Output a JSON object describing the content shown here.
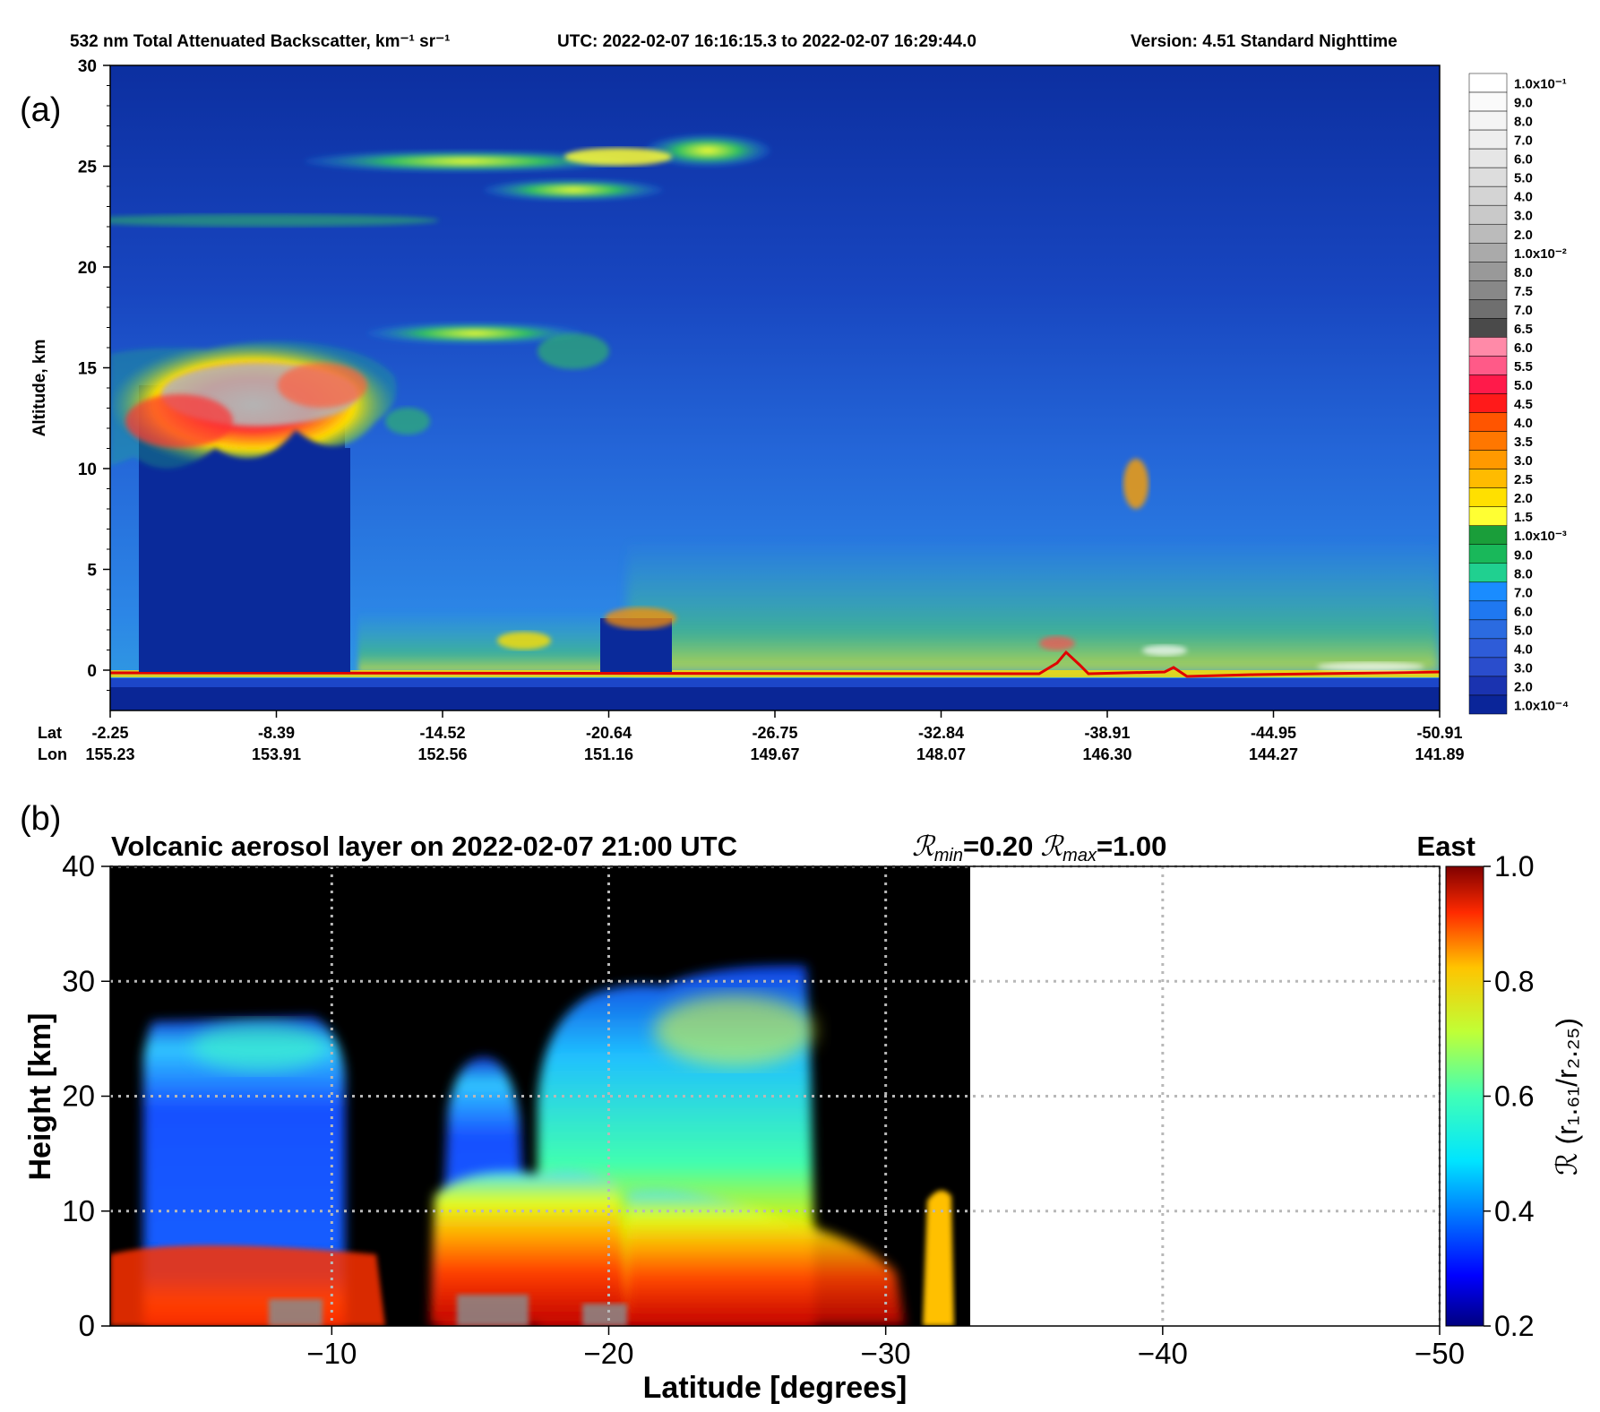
{
  "panel_a": {
    "panel_label": "(a)",
    "title": "532 nm Total Attenuated Backscatter, km⁻¹ sr⁻¹",
    "utc": "UTC:  2022-02-07 16:16:15.3  to  2022-02-07 16:29:44.0",
    "version": "Version: 4.51  Standard  Nighttime",
    "ylabel": "Altitude, km",
    "lat_label": "Lat",
    "lon_label": "Lon",
    "colorbar_labels": [
      "1.0x10⁻¹",
      "9.0",
      "8.0",
      "7.0",
      "6.0",
      "5.0",
      "4.0",
      "3.0",
      "2.0",
      "1.0x10⁻²",
      "8.0",
      "7.5",
      "7.0",
      "6.5",
      "6.0",
      "5.5",
      "5.0",
      "4.5",
      "4.0",
      "3.5",
      "3.0",
      "2.5",
      "2.0",
      "1.5",
      "1.0x10⁻³",
      "9.0",
      "8.0",
      "7.0",
      "6.0",
      "5.0",
      "4.0",
      "3.0",
      "2.0",
      "1.0x10⁻⁴"
    ],
    "colorbar_colors": [
      "#ffffff",
      "#fafafa",
      "#f4f4f4",
      "#eeeeee",
      "#e6e6e6",
      "#dddddd",
      "#d4d4d4",
      "#c9c9c9",
      "#bbbbbb",
      "#aaaaaa",
      "#999999",
      "#888888",
      "#6f6f6f",
      "#4a4a4a",
      "#ff8aa8",
      "#ff5a88",
      "#ff1a4a",
      "#ff1a1a",
      "#ff5500",
      "#ff7700",
      "#ff9900",
      "#ffbb00",
      "#ffe000",
      "#ffff33",
      "#1a9e3a",
      "#19b85a",
      "#20d090",
      "#1a8cff",
      "#1f78f0",
      "#2b6be0",
      "#2e5cd8",
      "#2a4dcc",
      "#1a33b0",
      "#0a2599"
    ],
    "chart_data": {
      "type": "heatmap",
      "y_ticks": [
        0,
        5,
        10,
        15,
        20,
        25,
        30
      ],
      "ylim": [
        -2,
        30
      ],
      "lat_ticks": [
        "-2.25",
        "-8.39",
        "-14.52",
        "-20.64",
        "-26.75",
        "-32.84",
        "-38.91",
        "-44.95",
        "-50.91"
      ],
      "lon_ticks": [
        "155.23",
        "153.91",
        "152.56",
        "151.16",
        "149.67",
        "148.07",
        "146.30",
        "144.27",
        "141.89"
      ],
      "colorscale": "log",
      "crange": [
        0.0001,
        0.1
      ]
    }
  },
  "panel_b": {
    "panel_label": "(b)",
    "title": "Volcanic aerosol layer on 2022-02-07 21:00 UTC",
    "r_label_sym": "ℛ",
    "r_min_sub": "min",
    "r_min_val": "=0.20",
    "r_max_sub": "max",
    "r_max_val": "=1.00",
    "direction": "East",
    "xlabel": "Latitude [degrees]",
    "ylabel": "Height [km]",
    "cbar_label": "ℛ (r₁.₆₁/r₂.₂₅)",
    "chart_data": {
      "type": "heatmap",
      "x_ticks": [
        -10,
        -20,
        -30,
        -40,
        -50
      ],
      "x_tick_labels": [
        "−10",
        "−20",
        "−30",
        "−40",
        "−50"
      ],
      "xlim": [
        -2,
        -50
      ],
      "y_ticks": [
        0,
        10,
        20,
        30,
        40
      ],
      "ylim": [
        0,
        40
      ],
      "cbar_ticks": [
        "1.0",
        "0.8",
        "0.6",
        "0.4",
        "0.2"
      ],
      "crange": [
        0.2,
        1.0
      ],
      "grid": true,
      "data_extent_lat": -32.5
    }
  }
}
